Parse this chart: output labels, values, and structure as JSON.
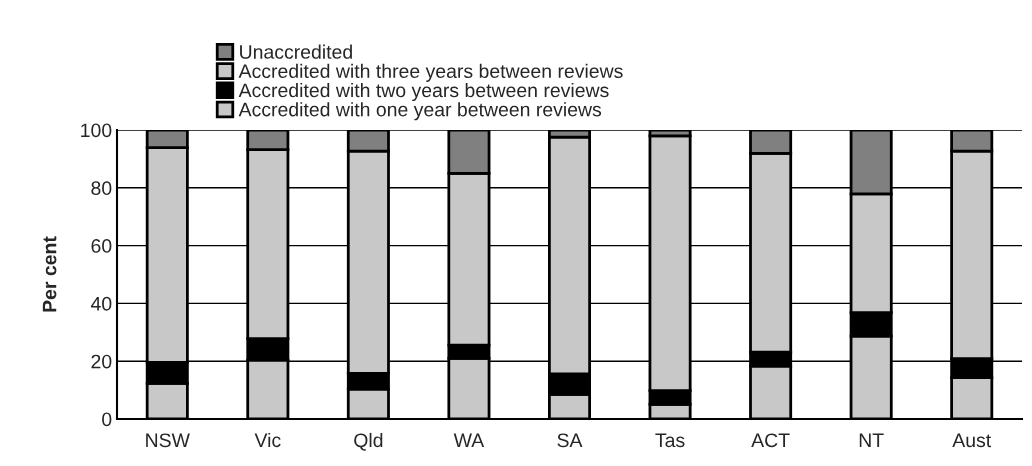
{
  "chart_data": {
    "type": "bar",
    "stacked": true,
    "ylabel": "Per cent",
    "categories": [
      "NSW",
      "Vic",
      "Qld",
      "WA",
      "SA",
      "Tas",
      "ACT",
      "NT",
      "Aust"
    ],
    "series": [
      {
        "name": "Accredited with one year between reviews",
        "color": "#c8c8c8",
        "values": [
          12.3,
          20.4,
          10.3,
          21.0,
          8.5,
          5.1,
          18.3,
          28.7,
          14.3
        ]
      },
      {
        "name": "Accredited with two years between reviews",
        "color": "#000000",
        "values": [
          7.3,
          7.4,
          5.5,
          4.6,
          7.1,
          4.7,
          4.8,
          8.1,
          6.6
        ]
      },
      {
        "name": "Accredited with three years between reviews",
        "color": "#c8c8c8",
        "values": [
          74.3,
          65.4,
          76.9,
          59.4,
          81.9,
          88.2,
          68.8,
          41.1,
          71.8
        ]
      },
      {
        "name": "Unaccredited",
        "color": "#808080",
        "values": [
          6.1,
          6.8,
          7.3,
          15.0,
          2.5,
          2.0,
          8.1,
          22.1,
          7.3
        ]
      }
    ],
    "ylim": [
      0,
      100
    ],
    "yticks": [
      0,
      20,
      40,
      60,
      80,
      100
    ],
    "grid": "y",
    "legend": "top"
  }
}
